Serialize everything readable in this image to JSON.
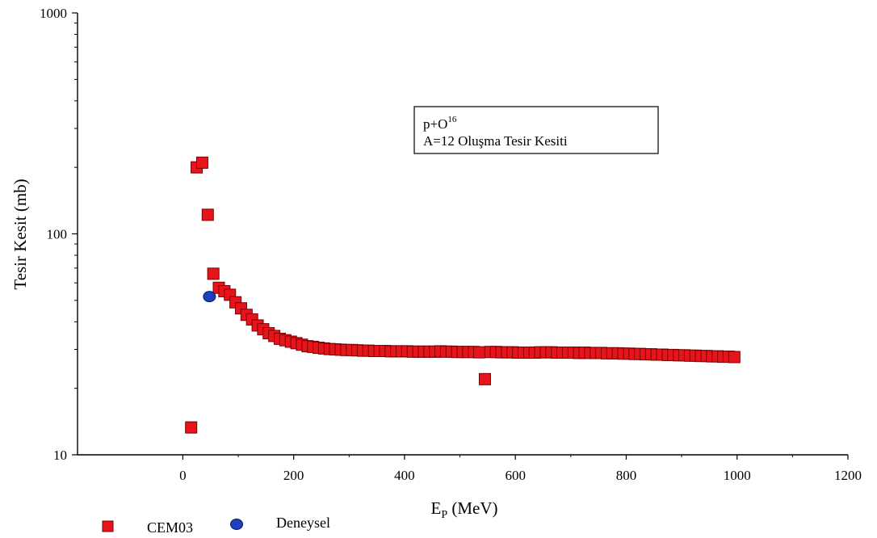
{
  "chart_data": {
    "type": "scatter",
    "title": "",
    "xlabel": {
      "main": "E",
      "sub": "P",
      "unit": " (MeV)"
    },
    "ylabel": "Tesir Kesit (mb)",
    "x_scale": "linear",
    "y_scale": "log",
    "xlim": [
      -190,
      1200
    ],
    "ylim": [
      10,
      1000
    ],
    "x_ticks": [
      0,
      200,
      400,
      600,
      800,
      1000,
      1200
    ],
    "x_tick_labels": [
      "0",
      "200",
      "400",
      "600",
      "800",
      "1000",
      "1200"
    ],
    "y_ticks": [
      10,
      100,
      1000
    ],
    "y_tick_labels": [
      "10",
      "100",
      "1000"
    ],
    "grid": false,
    "annotation": {
      "line1_main": "p+O",
      "line1_sup": "16",
      "line2": "A=12 Oluşma Tesir Kesiti"
    },
    "legend_position": "bottom-left",
    "series": [
      {
        "name": "CEM03",
        "marker": "square",
        "color": "#e8141b",
        "edge_color": "#7a0000",
        "x": [
          15,
          25,
          35,
          45,
          55,
          65,
          75,
          85,
          95,
          105,
          115,
          125,
          135,
          145,
          155,
          165,
          175,
          185,
          195,
          205,
          215,
          225,
          235,
          245,
          255,
          265,
          275,
          285,
          295,
          305,
          315,
          325,
          335,
          345,
          355,
          365,
          375,
          385,
          395,
          405,
          415,
          425,
          435,
          445,
          455,
          465,
          475,
          485,
          495,
          505,
          515,
          525,
          535,
          545,
          555,
          565,
          575,
          585,
          595,
          605,
          615,
          625,
          635,
          645,
          655,
          665,
          675,
          685,
          695,
          705,
          715,
          725,
          735,
          745,
          755,
          765,
          775,
          785,
          795,
          805,
          815,
          825,
          835,
          845,
          855,
          865,
          875,
          885,
          895,
          905,
          915,
          925,
          935,
          945,
          955,
          965,
          975,
          985,
          995
        ],
        "y": [
          13.3,
          200,
          210,
          122,
          66,
          57,
          55,
          53,
          49,
          46,
          43,
          41,
          38.5,
          37,
          35.5,
          34.5,
          33.5,
          33,
          32.5,
          32,
          31.5,
          31,
          30.8,
          30.5,
          30.3,
          30.1,
          30,
          29.9,
          29.8,
          29.8,
          29.7,
          29.6,
          29.6,
          29.5,
          29.5,
          29.5,
          29.4,
          29.4,
          29.4,
          29.4,
          29.3,
          29.3,
          29.3,
          29.3,
          29.3,
          29.4,
          29.3,
          29.3,
          29.2,
          29.2,
          29.2,
          29.2,
          29.1,
          22,
          29.2,
          29.2,
          29.1,
          29.1,
          29.1,
          29.0,
          29.0,
          29.0,
          29.0,
          29.1,
          29.1,
          29.1,
          29.0,
          29.0,
          29.0,
          29.0,
          28.9,
          29.0,
          28.9,
          28.9,
          28.9,
          28.8,
          28.8,
          28.8,
          28.7,
          28.7,
          28.6,
          28.6,
          28.5,
          28.5,
          28.4,
          28.4,
          28.3,
          28.3,
          28.2,
          28.2,
          28.1,
          28.1,
          28.0,
          28.0,
          27.9,
          27.9,
          27.8,
          27.8,
          27.7
        ]
      },
      {
        "name": "Deneysel",
        "marker": "circle",
        "color": "#1f3fbf",
        "edge_color": "#0a1a60",
        "x": [
          48
        ],
        "y": [
          52
        ]
      }
    ]
  }
}
